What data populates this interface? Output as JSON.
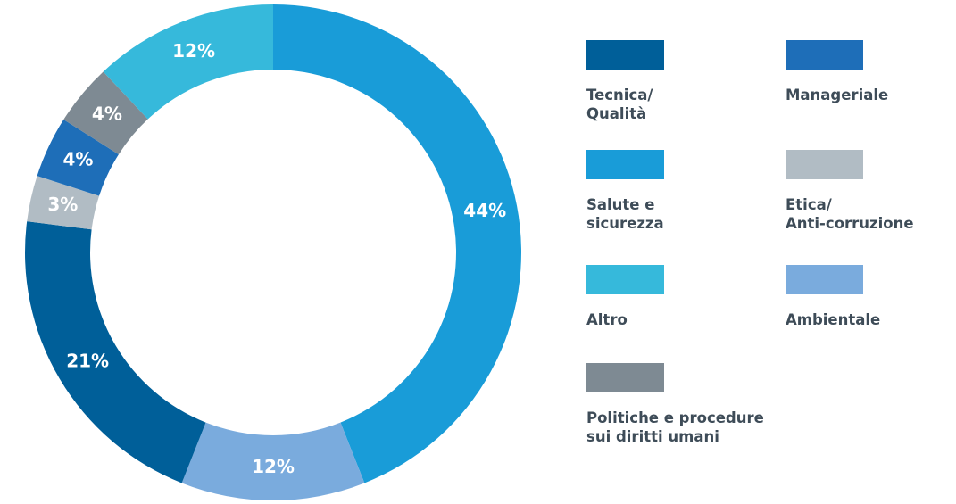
{
  "chart_data": {
    "type": "donut",
    "categories": [
      "Salute e\nsicurezza",
      "Ambientale",
      "Tecnica/\nQualità",
      "Etica/\nAnti-corruzione",
      "Manageriale",
      "Politiche e procedure\nsui diritti umani",
      "Altro"
    ],
    "values": [
      44,
      12,
      21,
      3,
      4,
      4,
      12
    ],
    "value_labels": [
      "44%",
      "12%",
      "21%",
      "3%",
      "4%",
      "4%",
      "12%"
    ],
    "colors": [
      "#199cd8",
      "#7aabdd",
      "#005f99",
      "#b1bcc4",
      "#1e6eb8",
      "#7e8a93",
      "#36b9db"
    ]
  }
}
